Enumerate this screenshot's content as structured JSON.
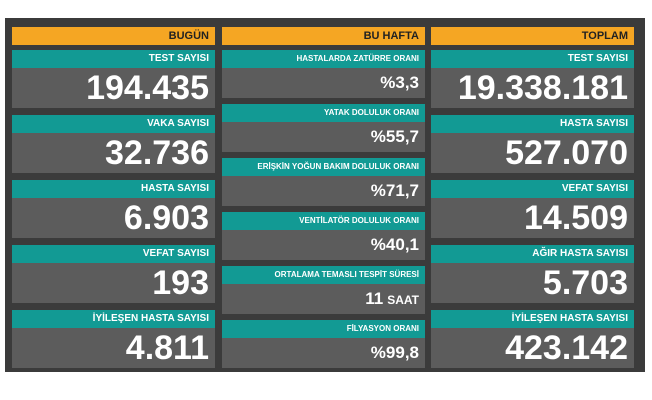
{
  "columns": [
    {
      "header": "BUGÜN",
      "cards": [
        {
          "label": "TEST SAYISI",
          "value": "194.435"
        },
        {
          "label": "VAKA SAYISI",
          "value": "32.736"
        },
        {
          "label": "HASTA SAYISI",
          "value": "6.903"
        },
        {
          "label": "VEFAT SAYISI",
          "value": "193"
        },
        {
          "label": "İYİLEŞEN HASTA SAYISI",
          "value": "4.811"
        }
      ]
    },
    {
      "header": "BU HAFTA",
      "cards": [
        {
          "label": "HASTALARDA ZATÜRRE ORANI",
          "value": "%3,3"
        },
        {
          "label": "YATAK DOLULUK ORANI",
          "value": "%55,7"
        },
        {
          "label": "ERİŞKİN YOĞUN BAKIM DOLULUK ORANI",
          "value": "%71,7"
        },
        {
          "label": "VENTİLATÖR DOLULUK ORANI",
          "value": "%40,1"
        },
        {
          "label": "ORTALAMA TEMASLI TESPİT SÜRESİ",
          "value": "11",
          "unit": "SAAT"
        },
        {
          "label": "FİLYASYON ORANI",
          "value": "%99,8"
        }
      ]
    },
    {
      "header": "TOPLAM",
      "cards": [
        {
          "label": "TEST SAYISI",
          "value": "19.338.181"
        },
        {
          "label": "HASTA SAYISI",
          "value": "527.070"
        },
        {
          "label": "VEFAT SAYISI",
          "value": "14.509"
        },
        {
          "label": "AĞIR HASTA SAYISI",
          "value": "5.703"
        },
        {
          "label": "İYİLEŞEN HASTA SAYISI",
          "value": "423.142"
        }
      ]
    }
  ]
}
